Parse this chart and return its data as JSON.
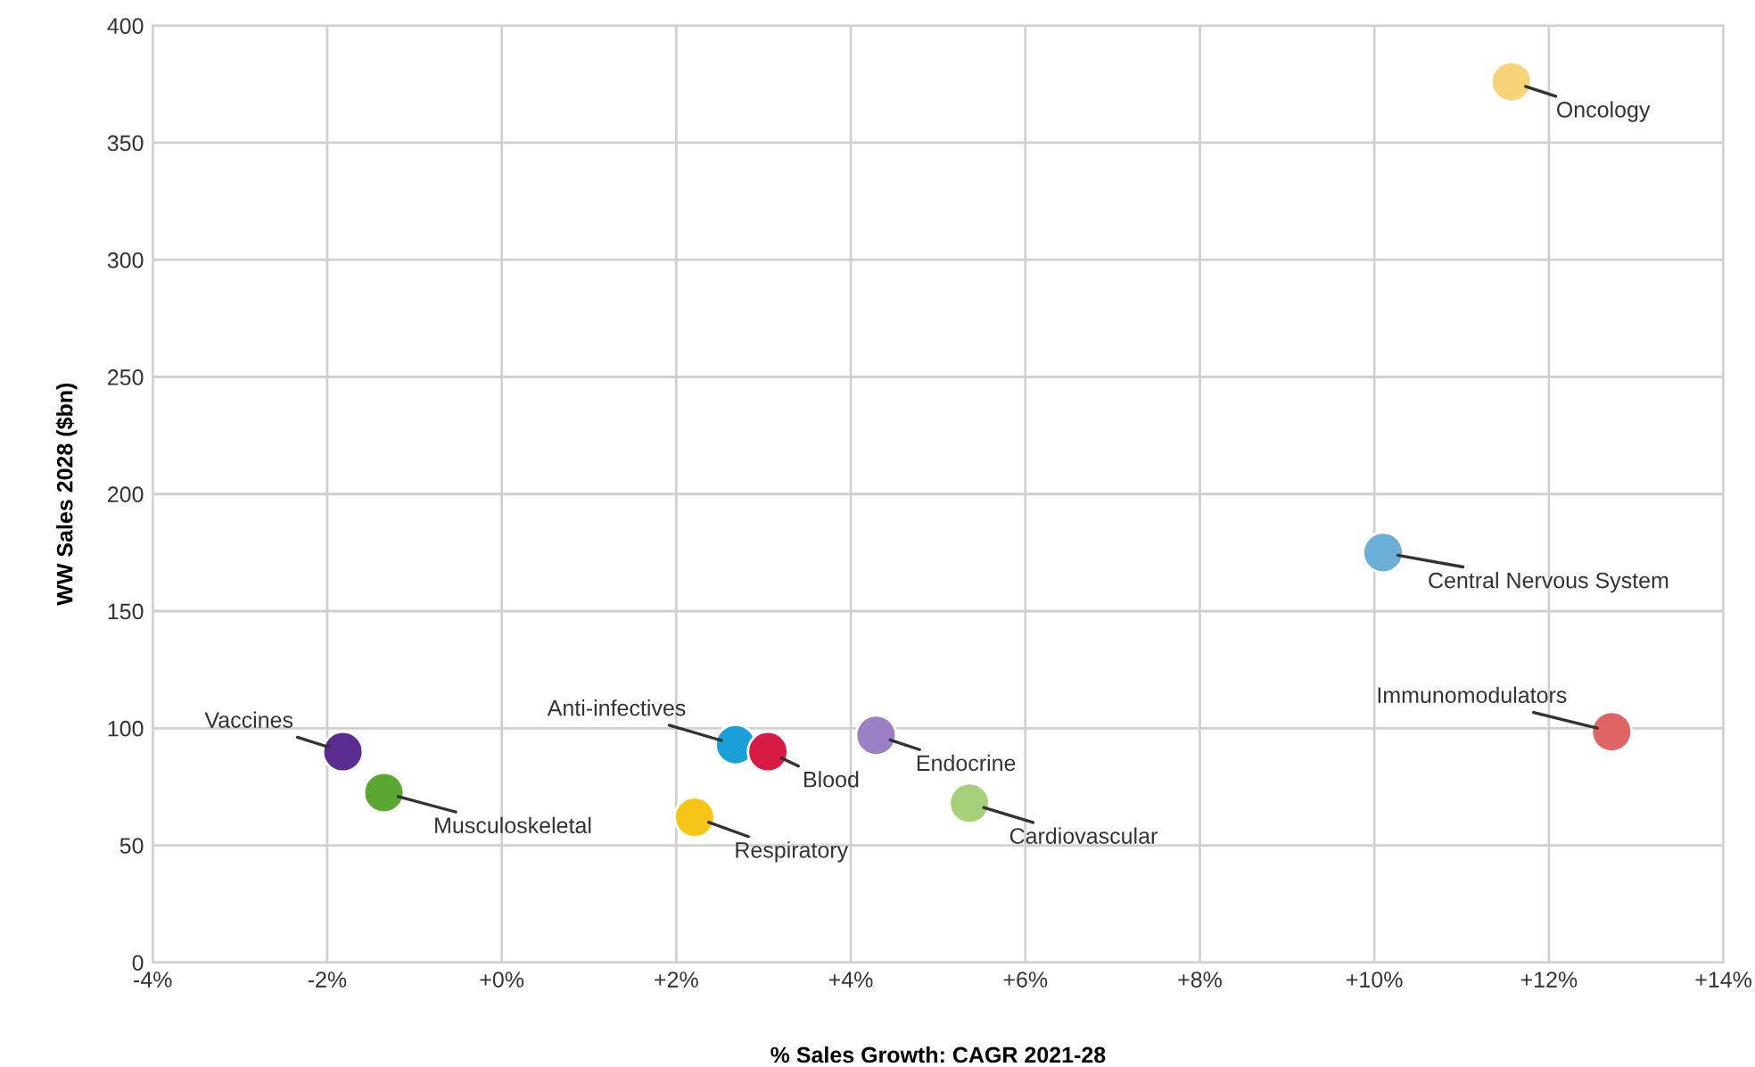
{
  "chart_data": {
    "type": "scatter",
    "xlabel": "% Sales Growth: CAGR 2021-28",
    "ylabel": "WW Sales 2028 ($bn)",
    "x": [
      11.57,
      10.1,
      12.72,
      -1.82,
      -1.35,
      2.68,
      3.05,
      2.21,
      4.29,
      5.36
    ],
    "values": [
      376,
      175,
      98.5,
      90,
      72.5,
      93,
      90,
      62,
      97,
      68
    ],
    "colors": [
      "#f7d37a",
      "#6baed6",
      "#e06666",
      "#5b2c8f",
      "#5aa832",
      "#1a9fd9",
      "#d81b45",
      "#f5c518",
      "#9b7fc4",
      "#a6d07a"
    ],
    "annotations": [
      {
        "text": "Oncology",
        "x": 11.57,
        "y": 376
      },
      {
        "text": "Central Nervous System",
        "x": 10.1,
        "y": 175
      },
      {
        "text": "Immunomodulators",
        "x": 12.72,
        "y": 98.5
      },
      {
        "text": "Vaccines",
        "x": -1.82,
        "y": 90
      },
      {
        "text": "Musculoskeletal",
        "x": -1.35,
        "y": 72.5
      },
      {
        "text": "Anti-infectives",
        "x": 2.68,
        "y": 93
      },
      {
        "text": "Blood",
        "x": 3.05,
        "y": 90
      },
      {
        "text": "Respiratory",
        "x": 2.21,
        "y": 62
      },
      {
        "text": "Endocrine",
        "x": 4.29,
        "y": 97
      },
      {
        "text": "Cardiovascular",
        "x": 5.36,
        "y": 68
      }
    ],
    "xlim": [
      -4,
      14
    ],
    "xticks": [
      {
        "value": -4,
        "label": "-4%"
      },
      {
        "value": -2,
        "label": "-2%"
      },
      {
        "value": 0,
        "label": "+0%"
      },
      {
        "value": 2,
        "label": "+2%"
      },
      {
        "value": 4,
        "label": "+4%"
      },
      {
        "value": 6,
        "label": "+6%"
      },
      {
        "value": 8,
        "label": "+8%"
      },
      {
        "value": 10,
        "label": "+10%"
      },
      {
        "value": 12,
        "label": "+12%"
      },
      {
        "value": 14,
        "label": "+14%"
      }
    ],
    "ylim": [
      0,
      400
    ],
    "yticks": [
      0,
      50,
      100,
      150,
      200,
      250,
      300,
      350,
      400
    ],
    "grid": true,
    "marker": "circle",
    "legend": false
  }
}
